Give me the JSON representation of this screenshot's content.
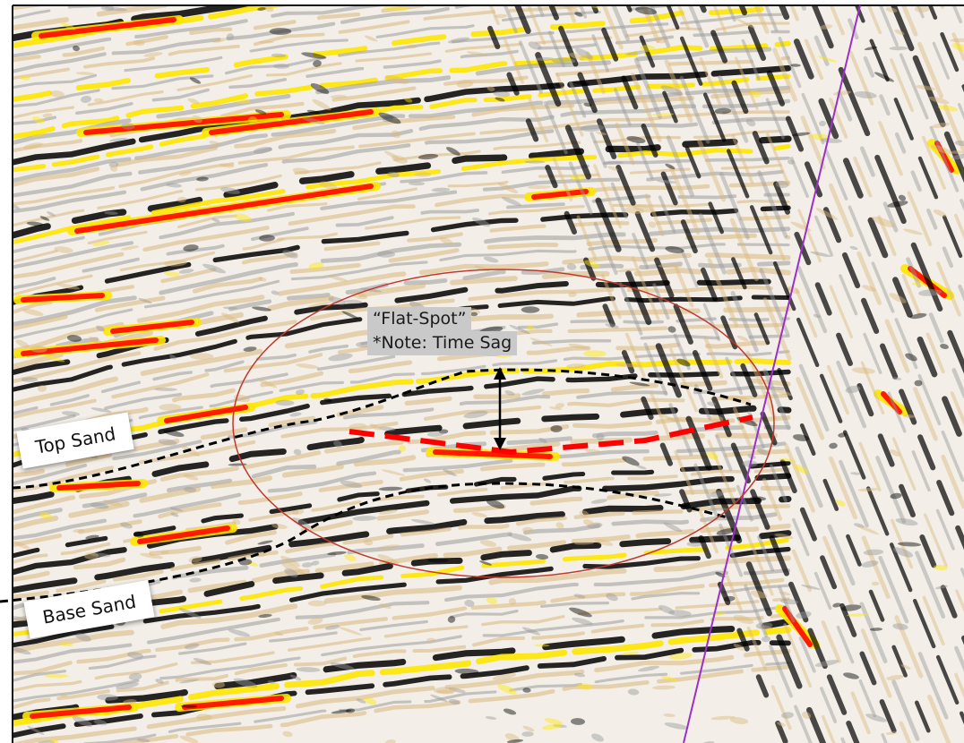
{
  "annotations": {
    "top_sand": "Top Sand",
    "base_sand": "Base Sand",
    "flat_spot_line1": "“Flat-Spot”",
    "flat_spot_line2": "*Note: Time Sag"
  },
  "colors": {
    "strong_positive": "#ff1a00",
    "positive": "#ffe600",
    "weak_positive": "#d9b77c",
    "negative": "#000000",
    "weak_negative": "#9a9a9a",
    "ellipse": "#c0392b",
    "flat_spot_line": "#ff0000",
    "fault_line": "#9b30c8",
    "horizon_lines": "#000000"
  }
}
